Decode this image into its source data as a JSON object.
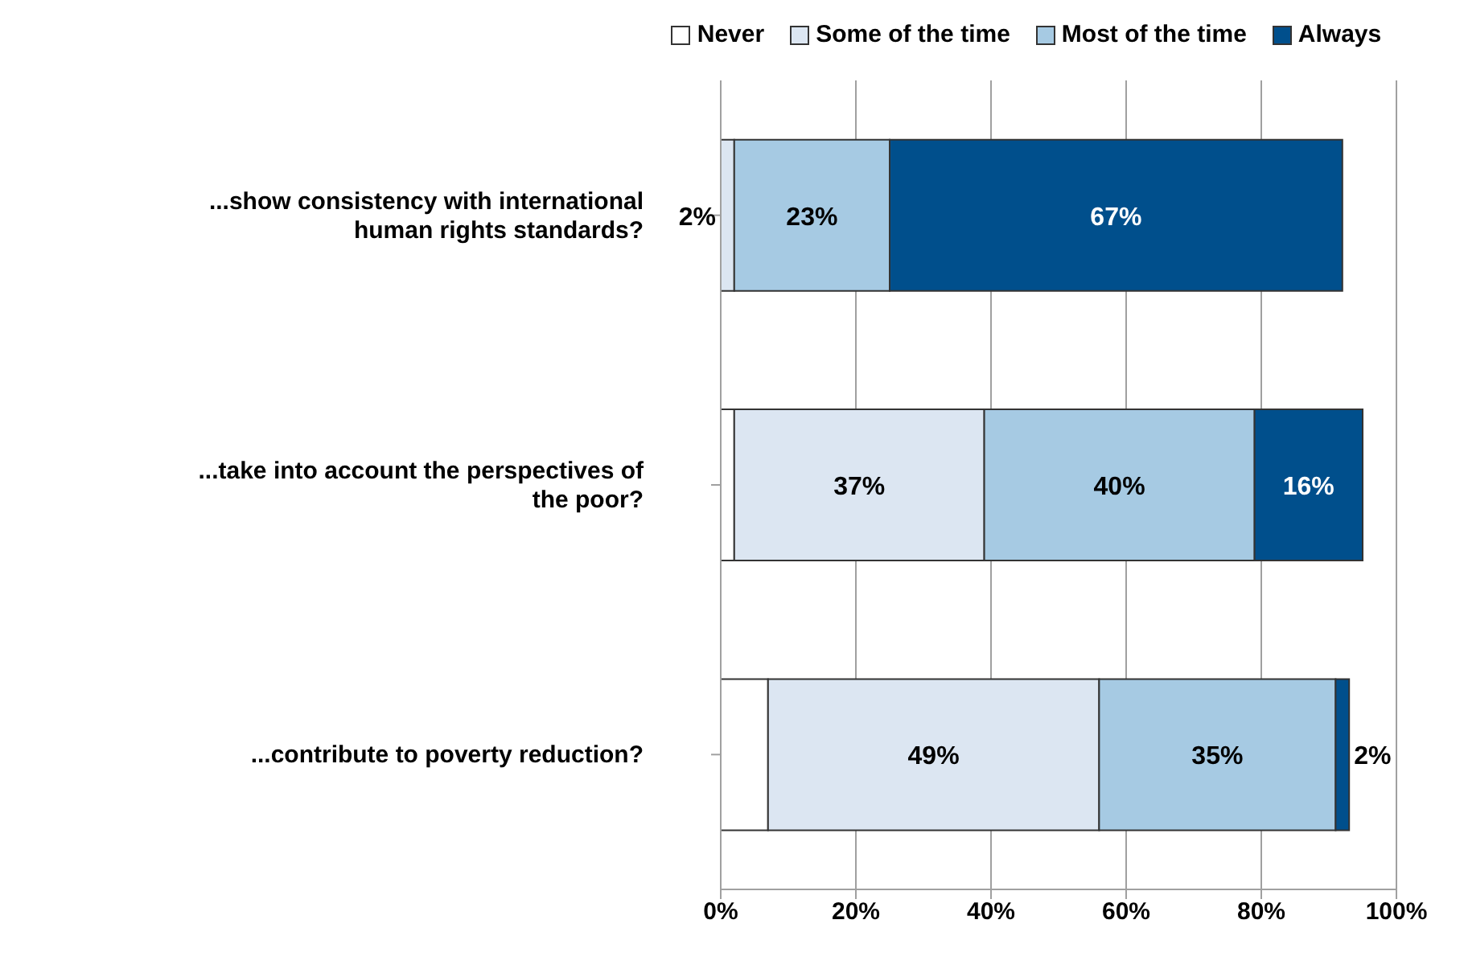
{
  "chart_data": {
    "type": "bar",
    "orientation": "horizontal",
    "stacked": true,
    "categories": [
      "...show consistency with international human rights standards?",
      "...take into account the perspectives of the poor?",
      "...contribute to poverty reduction?"
    ],
    "series": [
      {
        "name": "Never",
        "color": "#ffffff",
        "values": [
          0,
          2,
          7
        ]
      },
      {
        "name": "Some of the time",
        "color": "#dce6f2",
        "values": [
          2,
          37,
          49
        ],
        "value_labels": [
          "2%",
          "37%",
          "49%"
        ]
      },
      {
        "name": "Most of the time",
        "color": "#a6cae3",
        "values": [
          23,
          40,
          35
        ],
        "value_labels": [
          "23%",
          "40%",
          "35%"
        ]
      },
      {
        "name": "Always",
        "color": "#004f8c",
        "values": [
          67,
          16,
          2
        ],
        "value_labels": [
          "67%",
          "16%",
          "2%"
        ]
      }
    ],
    "xlim": [
      0,
      100
    ],
    "xticks": [
      {
        "value": 0,
        "label": "0%"
      },
      {
        "value": 20,
        "label": "20%"
      },
      {
        "value": 40,
        "label": "40%"
      },
      {
        "value": 60,
        "label": "60%"
      },
      {
        "value": 80,
        "label": "80%"
      },
      {
        "value": 100,
        "label": "100%"
      }
    ],
    "grid": "x",
    "legend": "top"
  }
}
